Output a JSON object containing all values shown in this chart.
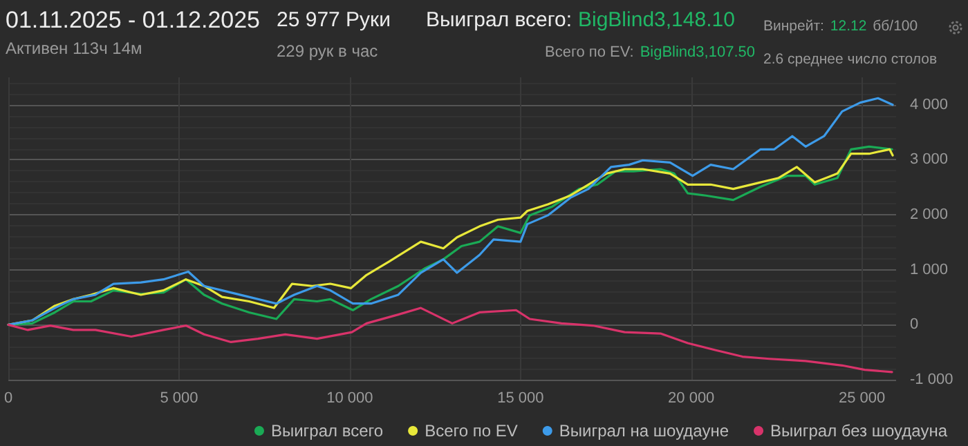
{
  "chart_data": {
    "type": "line",
    "title": "01.11.2025 - 01.12.2025",
    "subtitle": "Активен 113ч 14м",
    "annotations": [
      "25 977 Руки",
      "229 рук в час",
      "Выиграл всего:",
      "BigBlind3,148.10",
      "Всего по EV:",
      "BigBlind3,107.50",
      "Винрейт:",
      "12.12",
      "бб/100",
      "2.6 среднее число столов"
    ],
    "xlim": [
      0,
      26000
    ],
    "xticks": [
      0,
      {
        "value": 5000,
        "label": "5 000"
      },
      {
        "value": 10000,
        "label": "10 000"
      },
      {
        "value": 15000,
        "label": "15 000"
      },
      {
        "value": 20000,
        "label": "20 000"
      },
      {
        "value": 25000,
        "label": "25 000"
      }
    ],
    "ylim": [
      -1000,
      4500
    ],
    "yticks": [
      {
        "value": -1000,
        "label": "-1 000"
      },
      0,
      {
        "value": 1000,
        "label": "1 000"
      },
      {
        "value": 2000,
        "label": "2 000"
      },
      {
        "value": 3000,
        "label": "3 000"
      },
      {
        "value": 4000,
        "label": "4 000"
      }
    ],
    "grid": true,
    "legend": "bottom",
    "marker": "none",
    "line_style": "solid",
    "series": [
      {
        "name": "Выиграл всего",
        "color": "#1aaa55",
        "x": [
          0,
          700,
          1360,
          1900,
          2420,
          3080,
          3880,
          4540,
          5200,
          5730,
          6260,
          7050,
          7850,
          8370,
          9040,
          9430,
          10090,
          10620,
          11420,
          12210,
          12740,
          13270,
          13800,
          14340,
          15000,
          15270,
          15930,
          16720,
          17250,
          17780,
          18310,
          19100,
          19500,
          19900,
          20430,
          21230,
          22030,
          22820,
          23350,
          23620,
          24280,
          24680,
          25210,
          25880
        ],
        "values": [
          0,
          25,
          225,
          425,
          425,
          625,
          560,
          585,
          825,
          545,
          385,
          225,
          105,
          465,
          425,
          465,
          265,
          465,
          705,
          1030,
          1190,
          1430,
          1510,
          1790,
          1670,
          1990,
          2150,
          2470,
          2550,
          2790,
          2790,
          2830,
          2750,
          2390,
          2350,
          2270,
          2510,
          2710,
          2710,
          2550,
          2670,
          3190,
          3240,
          3190
        ]
      },
      {
        "name": "Всего по EV",
        "color": "#e8e83a",
        "x": [
          0,
          700,
          1360,
          1900,
          2420,
          3080,
          3880,
          4540,
          5200,
          5730,
          6260,
          7050,
          7780,
          8310,
          8900,
          9430,
          10030,
          10490,
          11150,
          12080,
          12740,
          13140,
          13800,
          14340,
          15000,
          15200,
          15800,
          16460,
          16990,
          17520,
          18050,
          18580,
          19380,
          19900,
          20570,
          21230,
          22030,
          22560,
          23090,
          23620,
          24280,
          24680,
          25210,
          25810,
          25900
        ],
        "values": [
          0,
          80,
          345,
          465,
          545,
          665,
          545,
          625,
          825,
          705,
          505,
          425,
          305,
          745,
          705,
          745,
          665,
          905,
          1150,
          1510,
          1390,
          1590,
          1790,
          1910,
          1950,
          2070,
          2190,
          2350,
          2550,
          2750,
          2830,
          2830,
          2750,
          2550,
          2550,
          2470,
          2590,
          2670,
          2870,
          2590,
          2750,
          3110,
          3110,
          3190,
          3080
        ]
      },
      {
        "name": "Выиграл на шоудауне",
        "color": "#3d9be9",
        "x": [
          0,
          700,
          1360,
          1900,
          2550,
          3080,
          3880,
          4540,
          5270,
          5730,
          6260,
          7050,
          7850,
          8370,
          9040,
          9430,
          10090,
          10620,
          11420,
          12080,
          12740,
          13140,
          13800,
          14210,
          15000,
          15200,
          15800,
          16460,
          16990,
          17650,
          18180,
          18580,
          19380,
          20040,
          20570,
          21230,
          22030,
          22430,
          22960,
          23350,
          23890,
          24420,
          24950,
          25470,
          25900
        ],
        "values": [
          0,
          80,
          305,
          465,
          545,
          745,
          770,
          825,
          965,
          705,
          625,
          505,
          385,
          545,
          705,
          625,
          385,
          385,
          545,
          945,
          1190,
          945,
          1270,
          1550,
          1510,
          1830,
          1990,
          2310,
          2470,
          2870,
          2910,
          2990,
          2950,
          2710,
          2910,
          2830,
          3190,
          3190,
          3430,
          3240,
          3430,
          3880,
          4040,
          4120,
          4000
        ]
      },
      {
        "name": "Выиграл без шоудауна",
        "color": "#d8336a",
        "x": [
          0,
          570,
          1230,
          1900,
          2550,
          3600,
          4540,
          5200,
          5730,
          6520,
          7310,
          8110,
          9040,
          10060,
          10490,
          11420,
          12080,
          13000,
          13800,
          14870,
          15270,
          16200,
          17120,
          18050,
          19100,
          19900,
          20700,
          21500,
          22290,
          23350,
          24420,
          25080,
          25880
        ],
        "values": [
          0,
          -95,
          -15,
          -95,
          -95,
          -215,
          -95,
          -15,
          -175,
          -315,
          -255,
          -175,
          -255,
          -135,
          25,
          185,
          305,
          25,
          225,
          265,
          105,
          25,
          -15,
          -135,
          -160,
          -335,
          -460,
          -580,
          -620,
          -660,
          -740,
          -820,
          -860
        ]
      }
    ]
  }
}
